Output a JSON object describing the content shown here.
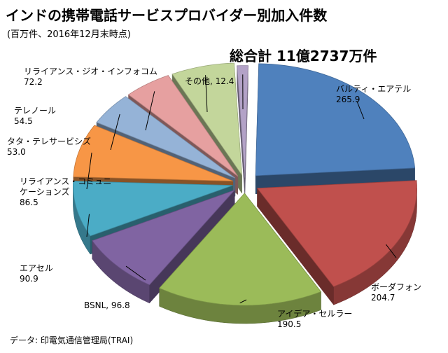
{
  "chart_data": {
    "type": "pie",
    "title": "インドの携帯電話サービスプロバイダー別加入件数",
    "subtitle": "(百万件、2016年12月末時点)",
    "total_label": "総合計 11億2737万件",
    "source": "データ: 印電気通信管理局(TRAI)",
    "categories": [
      "バルティ・エアテル",
      "ボーダフォン",
      "アイデア・セルラー",
      "BSNL",
      "エアセル",
      "リライアンス・コミュニケーションズ",
      "タタ・テレサービシズ",
      "テレノール",
      "リライアンス・ジオ・インフォコム",
      "その他"
    ],
    "values": [
      265.9,
      204.7,
      190.5,
      96.8,
      90.9,
      86.5,
      53.0,
      54.5,
      72.2,
      12.4
    ],
    "value_labels": [
      "265.9",
      "204.7",
      "190.5",
      "96.8",
      "90.9",
      "86.5",
      "53.0",
      "54.5",
      "72.2",
      "12.4"
    ],
    "colors": [
      "#4F81BD",
      "#C0504D",
      "#9BBB59",
      "#8064A2",
      "#4BACC6",
      "#F79646",
      "#95B3D7",
      "#E6A0A0",
      "#C3D69B",
      "#B3A2C7"
    ],
    "label_lines": [
      [
        "バルティ・エアテル",
        "265.9"
      ],
      [
        "ボーダフォン",
        "204.7"
      ],
      [
        "アイデア・セルラー",
        "190.5"
      ],
      [
        "BSNL, 96.8"
      ],
      [
        "エアセル",
        "90.9"
      ],
      [
        "リライアンス・コミュニ",
        "ケーションズ",
        "86.5"
      ],
      [
        "タタ・テレサービシズ",
        "53.0"
      ],
      [
        "テレノール",
        "54.5"
      ],
      [
        "リライアンス・ジオ・インフォコム",
        "72.2"
      ],
      [
        "その他, 12.4"
      ]
    ]
  }
}
